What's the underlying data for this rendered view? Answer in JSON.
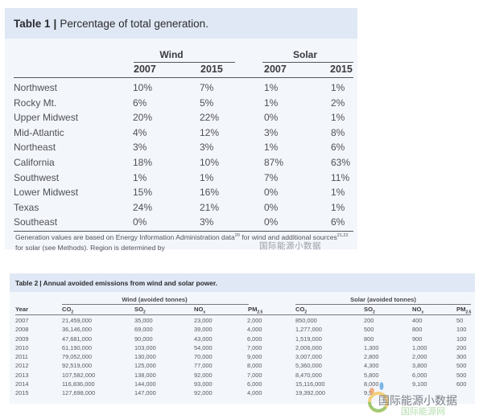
{
  "table1": {
    "label": "Table 1",
    "separator": "|",
    "title": "Percentage of total generation.",
    "groups": [
      "Wind",
      "Solar"
    ],
    "years": [
      "2007",
      "2015",
      "2007",
      "2015"
    ],
    "rows": [
      {
        "region": "Northwest",
        "values": [
          "10%",
          "7%",
          "1%",
          "1%"
        ]
      },
      {
        "region": "Rocky Mt.",
        "values": [
          "6%",
          "5%",
          "1%",
          "2%"
        ]
      },
      {
        "region": "Upper Midwest",
        "values": [
          "20%",
          "22%",
          "0%",
          "1%"
        ]
      },
      {
        "region": "Mid-Atlantic",
        "values": [
          "4%",
          "12%",
          "3%",
          "8%"
        ]
      },
      {
        "region": "Northeast",
        "values": [
          "3%",
          "3%",
          "1%",
          "6%"
        ]
      },
      {
        "region": "California",
        "values": [
          "18%",
          "10%",
          "87%",
          "63%"
        ]
      },
      {
        "region": "Southwest",
        "values": [
          "1%",
          "1%",
          "7%",
          "11%"
        ]
      },
      {
        "region": "Lower Midwest",
        "values": [
          "15%",
          "16%",
          "0%",
          "1%"
        ]
      },
      {
        "region": "Texas",
        "values": [
          "24%",
          "21%",
          "0%",
          "1%"
        ]
      },
      {
        "region": "Southeast",
        "values": [
          "0%",
          "3%",
          "0%",
          "6%"
        ]
      }
    ],
    "footnote": {
      "part1": "Generation values are based on Energy Information Administration data",
      "ref1": "20",
      "part2": " for wind and additional sources",
      "ref2": "21,22",
      "part3": " for solar (see Methods). Region is determined by "
    }
  },
  "table2": {
    "label": "Table 2",
    "separator": "|",
    "title": "Annual avoided emissions from wind and solar power.",
    "groups": [
      "Wind (avoided tonnes)",
      "Solar (avoided tonnes)"
    ],
    "columns": [
      {
        "base": "Year",
        "sub": ""
      },
      {
        "base": "CO",
        "sub": "2"
      },
      {
        "base": "SO",
        "sub": "2"
      },
      {
        "base": "NO",
        "sub": "x"
      },
      {
        "base": "PM",
        "sub": "2.5"
      },
      {
        "base": "CO",
        "sub": "2"
      },
      {
        "base": "SO",
        "sub": "2"
      },
      {
        "base": "NO",
        "sub": "x"
      },
      {
        "base": "PM",
        "sub": "2.5"
      }
    ],
    "rows": [
      [
        "2007",
        "21,459,000",
        "35,000",
        "23,000",
        "2,000",
        "850,000",
        "200",
        "400",
        "50"
      ],
      [
        "2008",
        "36,146,000",
        "69,000",
        "39,000",
        "4,000",
        "1,277,000",
        "500",
        "800",
        "100"
      ],
      [
        "2009",
        "47,681,000",
        "90,000",
        "43,000",
        "6,000",
        "1,519,000",
        "800",
        "900",
        "100"
      ],
      [
        "2010",
        "61,190,000",
        "103,000",
        "54,000",
        "7,000",
        "2,006,000",
        "1,300",
        "1,000",
        "200"
      ],
      [
        "2011",
        "79,052,000",
        "130,000",
        "70,000",
        "9,000",
        "3,007,000",
        "2,800",
        "2,000",
        "300"
      ],
      [
        "2012",
        "92,519,000",
        "125,000",
        "77,000",
        "8,000",
        "5,360,000",
        "4,300",
        "3,800",
        "500"
      ],
      [
        "2013",
        "107,582,000",
        "138,000",
        "92,000",
        "7,000",
        "8,470,000",
        "5,800",
        "6,000",
        "500"
      ],
      [
        "2014",
        "116,836,000",
        "144,000",
        "93,000",
        "6,000",
        "15,116,000",
        "8,000",
        "9,100",
        "600"
      ],
      [
        "2015",
        "127,698,000",
        "147,000",
        "92,000",
        "4,000",
        "19,392,000",
        "9,5",
        "",
        ""
      ]
    ]
  },
  "watermark": {
    "text": "国际能源小数据",
    "subtext": "国际能源网"
  },
  "colors": {
    "title_band": "#dfe8f4",
    "table_bg": "#f3f6fb",
    "text": "#505056"
  }
}
